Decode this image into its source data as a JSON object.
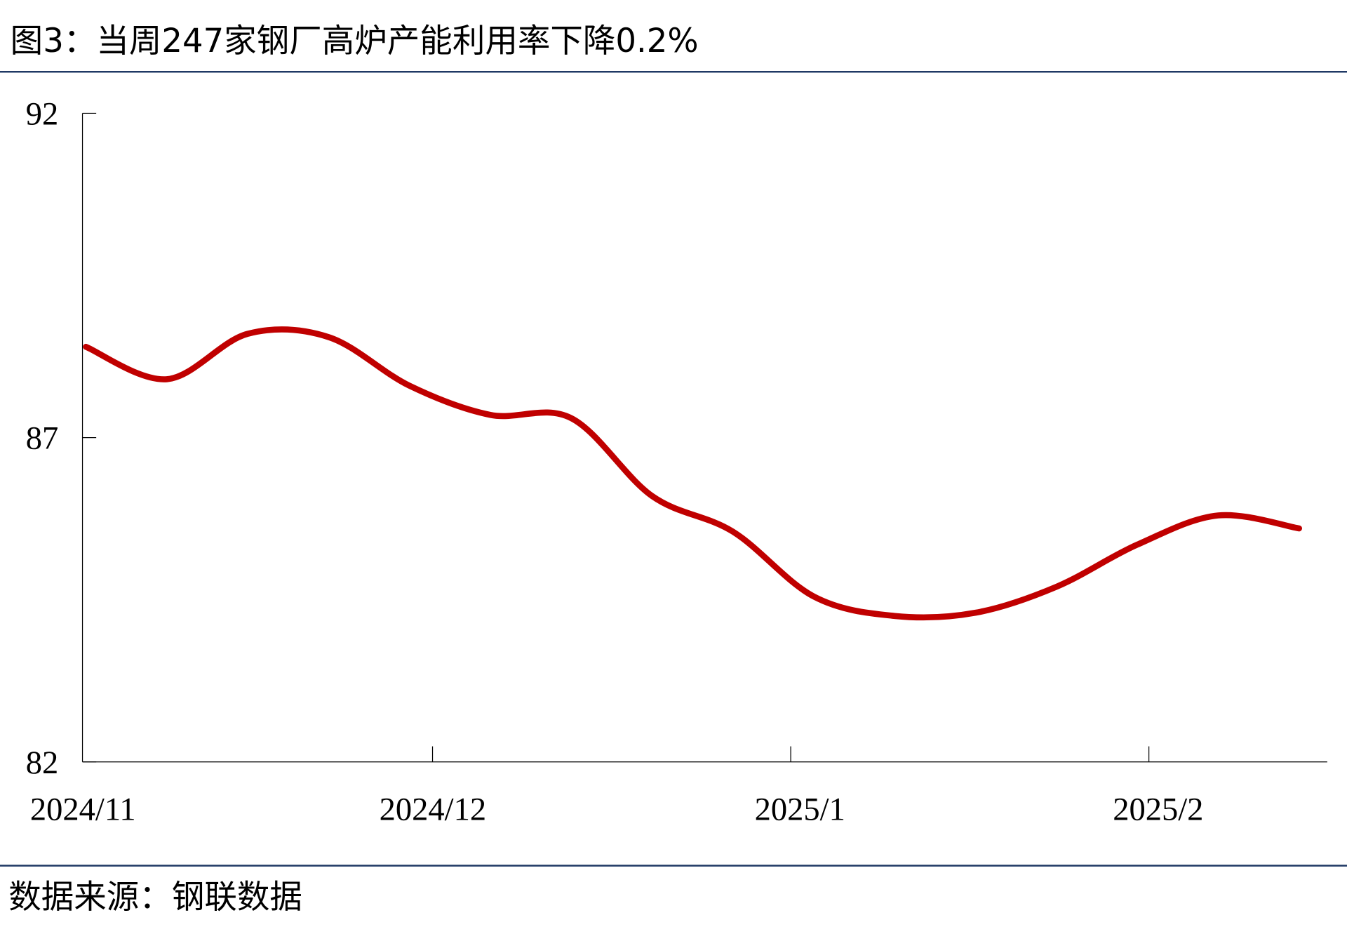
{
  "title": "图3：当周247家钢厂高炉产能利用率下降0.2%",
  "source": "数据来源：钢联数据",
  "colors": {
    "line": "#C00000",
    "rule": "#1F3864",
    "axis": "#000000"
  },
  "chart_data": {
    "type": "line",
    "title": "图3：当周247家钢厂高炉产能利用率下降0.2%",
    "xlabel": "",
    "ylabel": "",
    "ylim": [
      82,
      92
    ],
    "yticks": [
      82,
      87,
      92
    ],
    "xtick_labels": [
      "2024/11",
      "2024/12",
      "2025/1",
      "2025/2"
    ],
    "xtick_dates": [
      "2024-11-01",
      "2024-12-01",
      "2025-01-01",
      "2025-02-01"
    ],
    "grid": false,
    "legend": "none",
    "x": [
      "2024-11-01",
      "2024-11-08",
      "2024-11-15",
      "2024-11-22",
      "2024-11-29",
      "2024-12-06",
      "2024-12-13",
      "2024-12-20",
      "2024-12-27",
      "2025-01-03",
      "2025-01-10",
      "2025-01-17",
      "2025-01-24",
      "2025-01-31",
      "2025-02-07",
      "2025-02-14"
    ],
    "series": [
      {
        "values": [
          88.4,
          87.9,
          88.6,
          88.55,
          87.8,
          87.35,
          87.3,
          86.1,
          85.55,
          84.55,
          84.25,
          84.3,
          84.7,
          85.35,
          85.8,
          85.6
        ]
      }
    ]
  }
}
